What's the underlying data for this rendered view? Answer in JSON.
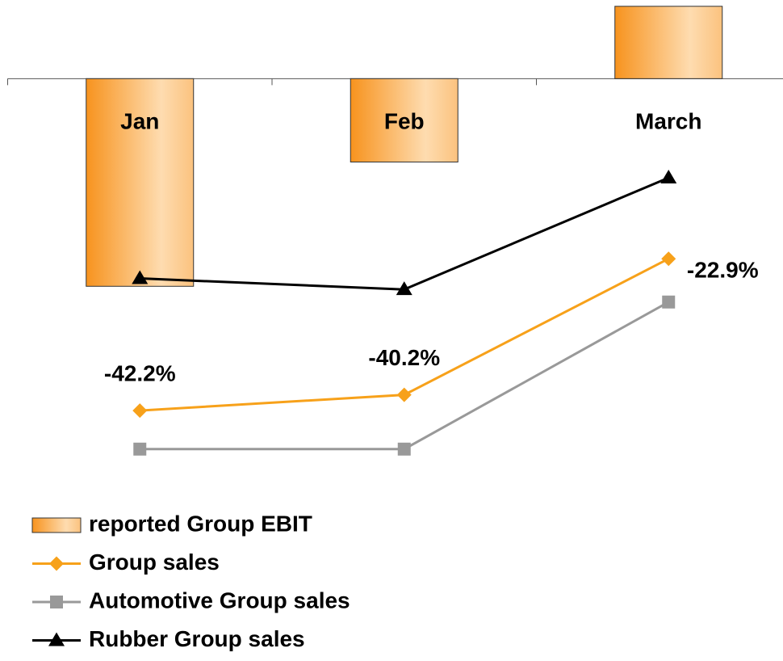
{
  "chart_data": {
    "type": "combo",
    "categories": [
      "Jan",
      "Feb",
      "March"
    ],
    "ylim": [
      -50,
      10
    ],
    "legend": "bottom",
    "series": [
      {
        "name": "reported Group EBIT",
        "type": "bar",
        "color": "#f7931e",
        "values": [
          -26.4,
          -10.6,
          9.2
        ]
      },
      {
        "name": "Group sales",
        "type": "line",
        "marker": "diamond",
        "color": "#f7a11a",
        "values": [
          -42.2,
          -40.2,
          -22.9
        ],
        "value_labels": [
          "-42.2%",
          "-40.2%",
          "-22.9%"
        ]
      },
      {
        "name": "Automotive Group sales",
        "type": "line",
        "marker": "square",
        "color": "#999999",
        "values": [
          -47.1,
          -47.1,
          -28.4
        ]
      },
      {
        "name": "Rubber Group sales",
        "type": "line",
        "marker": "triangle",
        "color": "#000000",
        "values": [
          -25.4,
          -26.8,
          -12.6
        ]
      }
    ]
  }
}
